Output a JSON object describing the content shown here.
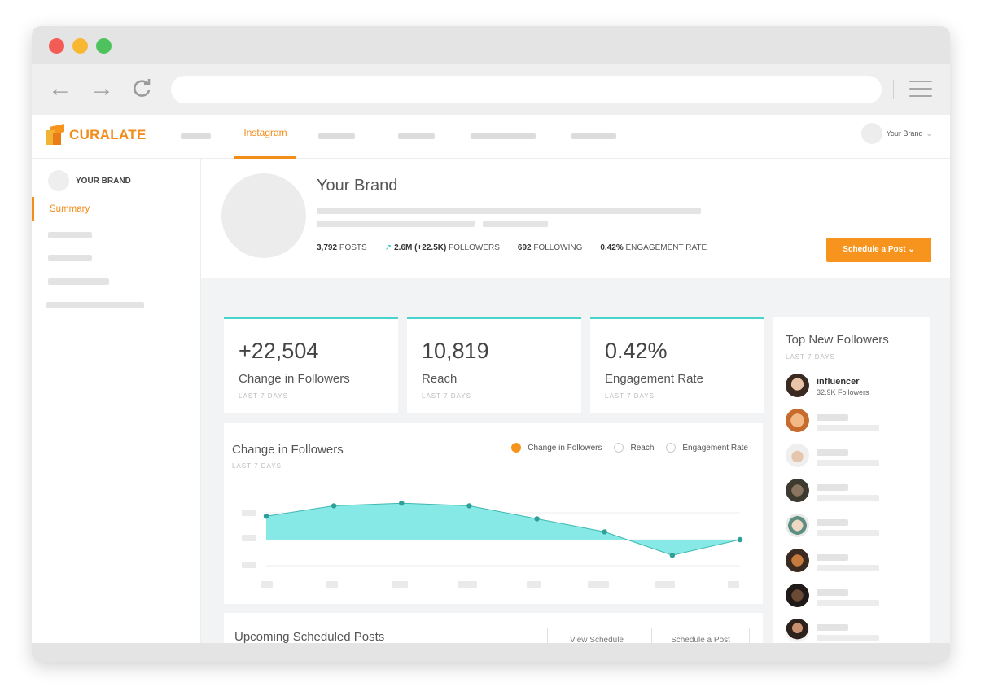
{
  "browser": {
    "back_icon": "arrow-left-icon",
    "forward_icon": "arrow-right-icon",
    "reload_icon": "reload-icon",
    "menu_icon": "hamburger-menu-icon",
    "url": ""
  },
  "app": {
    "logo_text": "CURALATE",
    "nav": {
      "active_tab": "Instagram"
    },
    "brand_menu_label": "Your Brand",
    "accent_color": "#f28c1b",
    "teal_color": "#48d3cd"
  },
  "sidebar": {
    "brand_label": "YOUR BRAND",
    "active_item": "Summary"
  },
  "profile": {
    "name": "Your Brand",
    "posts_value": "3,792",
    "posts_label": "POSTS",
    "followers_value": "2.6M (+22.5K)",
    "followers_label": "FOLLOWERS",
    "following_value": "692",
    "following_label": "FOLLOWING",
    "engagement_value": "0.42%",
    "engagement_label": "ENGAGEMENT RATE",
    "schedule_button": "Schedule a Post"
  },
  "stat_cards": [
    {
      "value": "+22,504",
      "label": "Change in Followers",
      "period": "LAST 7 DAYS"
    },
    {
      "value": "10,819",
      "label": "Reach",
      "period": "LAST 7 DAYS"
    },
    {
      "value": "0.42%",
      "label": "Engagement Rate",
      "period": "LAST 7 DAYS"
    }
  ],
  "chart": {
    "title": "Change in Followers",
    "period": "LAST 7 DAYS",
    "legend": [
      "Change in Followers",
      "Reach",
      "Engagement Rate"
    ],
    "selected_legend": "Change in Followers"
  },
  "chart_data": {
    "type": "area",
    "title": "Change in Followers",
    "xlabel": "",
    "ylabel": "",
    "series": [
      {
        "name": "Change in Followers",
        "values": [
          0.9,
          1.3,
          1.4,
          1.3,
          0.8,
          0.3,
          -0.6,
          0.0
        ]
      }
    ],
    "baseline": 0,
    "grid": true,
    "color": "#7fe8e4"
  },
  "upcoming": {
    "title": "Upcoming Scheduled Posts",
    "view_button": "View Schedule",
    "schedule_button": "Schedule a Post"
  },
  "followers": {
    "title": "Top New Followers",
    "period": "LAST 7 DAYS",
    "top_name": "influencer",
    "top_count": "32.9K Followers"
  }
}
